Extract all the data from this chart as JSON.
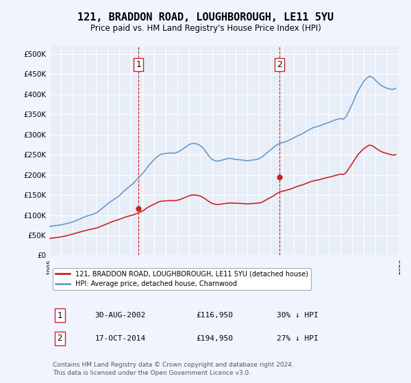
{
  "title": "121, BRADDON ROAD, LOUGHBOROUGH, LE11 5YU",
  "subtitle": "Price paid vs. HM Land Registry's House Price Index (HPI)",
  "background_color": "#f0f4ff",
  "plot_bg_color": "#e8eef8",
  "grid_color": "#ffffff",
  "ylim": [
    0,
    520000
  ],
  "yticks": [
    0,
    50000,
    100000,
    150000,
    200000,
    250000,
    300000,
    350000,
    400000,
    450000,
    500000
  ],
  "ytick_labels": [
    "£0",
    "£50K",
    "£100K",
    "£150K",
    "£200K",
    "£250K",
    "£300K",
    "£350K",
    "£400K",
    "£450K",
    "£500K"
  ],
  "year_start": 1995,
  "year_end": 2025,
  "hpi_color": "#6699cc",
  "price_color": "#cc2222",
  "vline_color": "#cc2222",
  "marker1_date_idx": 7.67,
  "marker2_date_idx": 19.79,
  "marker1_price": 116950,
  "marker2_price": 194950,
  "marker1_label": "1",
  "marker2_label": "2",
  "legend_entry1": "121, BRADDON ROAD, LOUGHBOROUGH, LE11 5YU (detached house)",
  "legend_entry2": "HPI: Average price, detached house, Charnwood",
  "table_row1": [
    "1",
    "30-AUG-2002",
    "£116,950",
    "30% ↓ HPI"
  ],
  "table_row2": [
    "2",
    "17-OCT-2014",
    "£194,950",
    "27% ↓ HPI"
  ],
  "footer": "Contains HM Land Registry data © Crown copyright and database right 2024.\nThis data is licensed under the Open Government Licence v3.0.",
  "hpi_data": {
    "years": [
      1995.0,
      1995.25,
      1995.5,
      1995.75,
      1996.0,
      1996.25,
      1996.5,
      1996.75,
      1997.0,
      1997.25,
      1997.5,
      1997.75,
      1998.0,
      1998.25,
      1998.5,
      1998.75,
      1999.0,
      1999.25,
      1999.5,
      1999.75,
      2000.0,
      2000.25,
      2000.5,
      2000.75,
      2001.0,
      2001.25,
      2001.5,
      2001.75,
      2002.0,
      2002.25,
      2002.5,
      2002.75,
      2003.0,
      2003.25,
      2003.5,
      2003.75,
      2004.0,
      2004.25,
      2004.5,
      2004.75,
      2005.0,
      2005.25,
      2005.5,
      2005.75,
      2006.0,
      2006.25,
      2006.5,
      2006.75,
      2007.0,
      2007.25,
      2007.5,
      2007.75,
      2008.0,
      2008.25,
      2008.5,
      2008.75,
      2009.0,
      2009.25,
      2009.5,
      2009.75,
      2010.0,
      2010.25,
      2010.5,
      2010.75,
      2011.0,
      2011.25,
      2011.5,
      2011.75,
      2012.0,
      2012.25,
      2012.5,
      2012.75,
      2013.0,
      2013.25,
      2013.5,
      2013.75,
      2014.0,
      2014.25,
      2014.5,
      2014.75,
      2015.0,
      2015.25,
      2015.5,
      2015.75,
      2016.0,
      2016.25,
      2016.5,
      2016.75,
      2017.0,
      2017.25,
      2017.5,
      2017.75,
      2018.0,
      2018.25,
      2018.5,
      2018.75,
      2019.0,
      2019.25,
      2019.5,
      2019.75,
      2020.0,
      2020.25,
      2020.5,
      2020.75,
      2021.0,
      2021.25,
      2021.5,
      2021.75,
      2022.0,
      2022.25,
      2022.5,
      2022.75,
      2023.0,
      2023.25,
      2023.5,
      2023.75,
      2024.0,
      2024.25,
      2024.5,
      2024.75
    ],
    "values": [
      72000,
      73000,
      74000,
      75000,
      76000,
      77500,
      79000,
      81000,
      83000,
      86000,
      89000,
      92000,
      95000,
      98000,
      100000,
      102000,
      105000,
      110000,
      116000,
      122000,
      128000,
      133000,
      138000,
      143000,
      148000,
      155000,
      162000,
      168000,
      174000,
      180000,
      188000,
      196000,
      203000,
      212000,
      222000,
      230000,
      238000,
      245000,
      250000,
      252000,
      253000,
      254000,
      254000,
      254000,
      256000,
      260000,
      265000,
      270000,
      275000,
      278000,
      278000,
      276000,
      272000,
      265000,
      255000,
      245000,
      238000,
      235000,
      234000,
      236000,
      238000,
      240000,
      241000,
      240000,
      238000,
      238000,
      237000,
      236000,
      235000,
      236000,
      237000,
      238000,
      240000,
      244000,
      250000,
      256000,
      262000,
      268000,
      274000,
      278000,
      280000,
      282000,
      285000,
      288000,
      292000,
      296000,
      299000,
      302000,
      307000,
      311000,
      315000,
      318000,
      320000,
      322000,
      325000,
      328000,
      330000,
      333000,
      336000,
      338000,
      340000,
      338000,
      345000,
      360000,
      375000,
      392000,
      408000,
      420000,
      432000,
      440000,
      445000,
      442000,
      435000,
      428000,
      422000,
      418000,
      415000,
      413000,
      412000,
      415000
    ]
  },
  "price_data": {
    "years": [
      1995.0,
      1995.25,
      1995.5,
      1995.75,
      1996.0,
      1996.25,
      1996.5,
      1996.75,
      1997.0,
      1997.25,
      1997.5,
      1997.75,
      1998.0,
      1998.25,
      1998.5,
      1998.75,
      1999.0,
      1999.25,
      1999.5,
      1999.75,
      2000.0,
      2000.25,
      2000.5,
      2000.75,
      2001.0,
      2001.25,
      2001.5,
      2001.75,
      2002.0,
      2002.25,
      2002.5,
      2002.75,
      2003.0,
      2003.25,
      2003.5,
      2003.75,
      2004.0,
      2004.25,
      2004.5,
      2004.75,
      2005.0,
      2005.25,
      2005.5,
      2005.75,
      2006.0,
      2006.25,
      2006.5,
      2006.75,
      2007.0,
      2007.25,
      2007.5,
      2007.75,
      2008.0,
      2008.25,
      2008.5,
      2008.75,
      2009.0,
      2009.25,
      2009.5,
      2009.75,
      2010.0,
      2010.25,
      2010.5,
      2010.75,
      2011.0,
      2011.25,
      2011.5,
      2011.75,
      2012.0,
      2012.25,
      2012.5,
      2012.75,
      2013.0,
      2013.25,
      2013.5,
      2013.75,
      2014.0,
      2014.25,
      2014.5,
      2014.75,
      2015.0,
      2015.25,
      2015.5,
      2015.75,
      2016.0,
      2016.25,
      2016.5,
      2016.75,
      2017.0,
      2017.25,
      2017.5,
      2017.75,
      2018.0,
      2018.25,
      2018.5,
      2018.75,
      2019.0,
      2019.25,
      2019.5,
      2019.75,
      2020.0,
      2020.25,
      2020.5,
      2020.75,
      2021.0,
      2021.25,
      2021.5,
      2021.75,
      2022.0,
      2022.25,
      2022.5,
      2022.75,
      2023.0,
      2023.25,
      2023.5,
      2023.75,
      2024.0,
      2024.25,
      2024.5,
      2024.75
    ],
    "values": [
      42000,
      43000,
      44000,
      45000,
      46000,
      47500,
      49000,
      51000,
      53000,
      55000,
      57000,
      59000,
      61000,
      63000,
      64500,
      66000,
      67500,
      70000,
      73000,
      76000,
      79000,
      82000,
      85000,
      87000,
      89500,
      92000,
      95000,
      97000,
      99000,
      101000,
      104000,
      107000,
      110000,
      115000,
      120000,
      124000,
      127000,
      131000,
      134000,
      135000,
      135500,
      136000,
      136000,
      136000,
      137000,
      139000,
      142000,
      145000,
      148000,
      150000,
      150000,
      149000,
      147000,
      143000,
      138000,
      133000,
      129000,
      127000,
      126500,
      127500,
      128500,
      129500,
      130000,
      130000,
      129500,
      129500,
      129000,
      128500,
      128000,
      128500,
      129000,
      129500,
      130000,
      132000,
      136000,
      140000,
      144000,
      148000,
      153000,
      157000,
      159000,
      161000,
      163000,
      165000,
      168000,
      171000,
      173000,
      175500,
      178000,
      181000,
      183500,
      185500,
      187000,
      188500,
      190500,
      192500,
      194000,
      196000,
      198000,
      200000,
      202000,
      201000,
      206000,
      217000,
      228000,
      239000,
      250000,
      258000,
      265000,
      270000,
      274000,
      272000,
      267000,
      262000,
      258000,
      255000,
      253000,
      251000,
      249000,
      250000
    ]
  }
}
